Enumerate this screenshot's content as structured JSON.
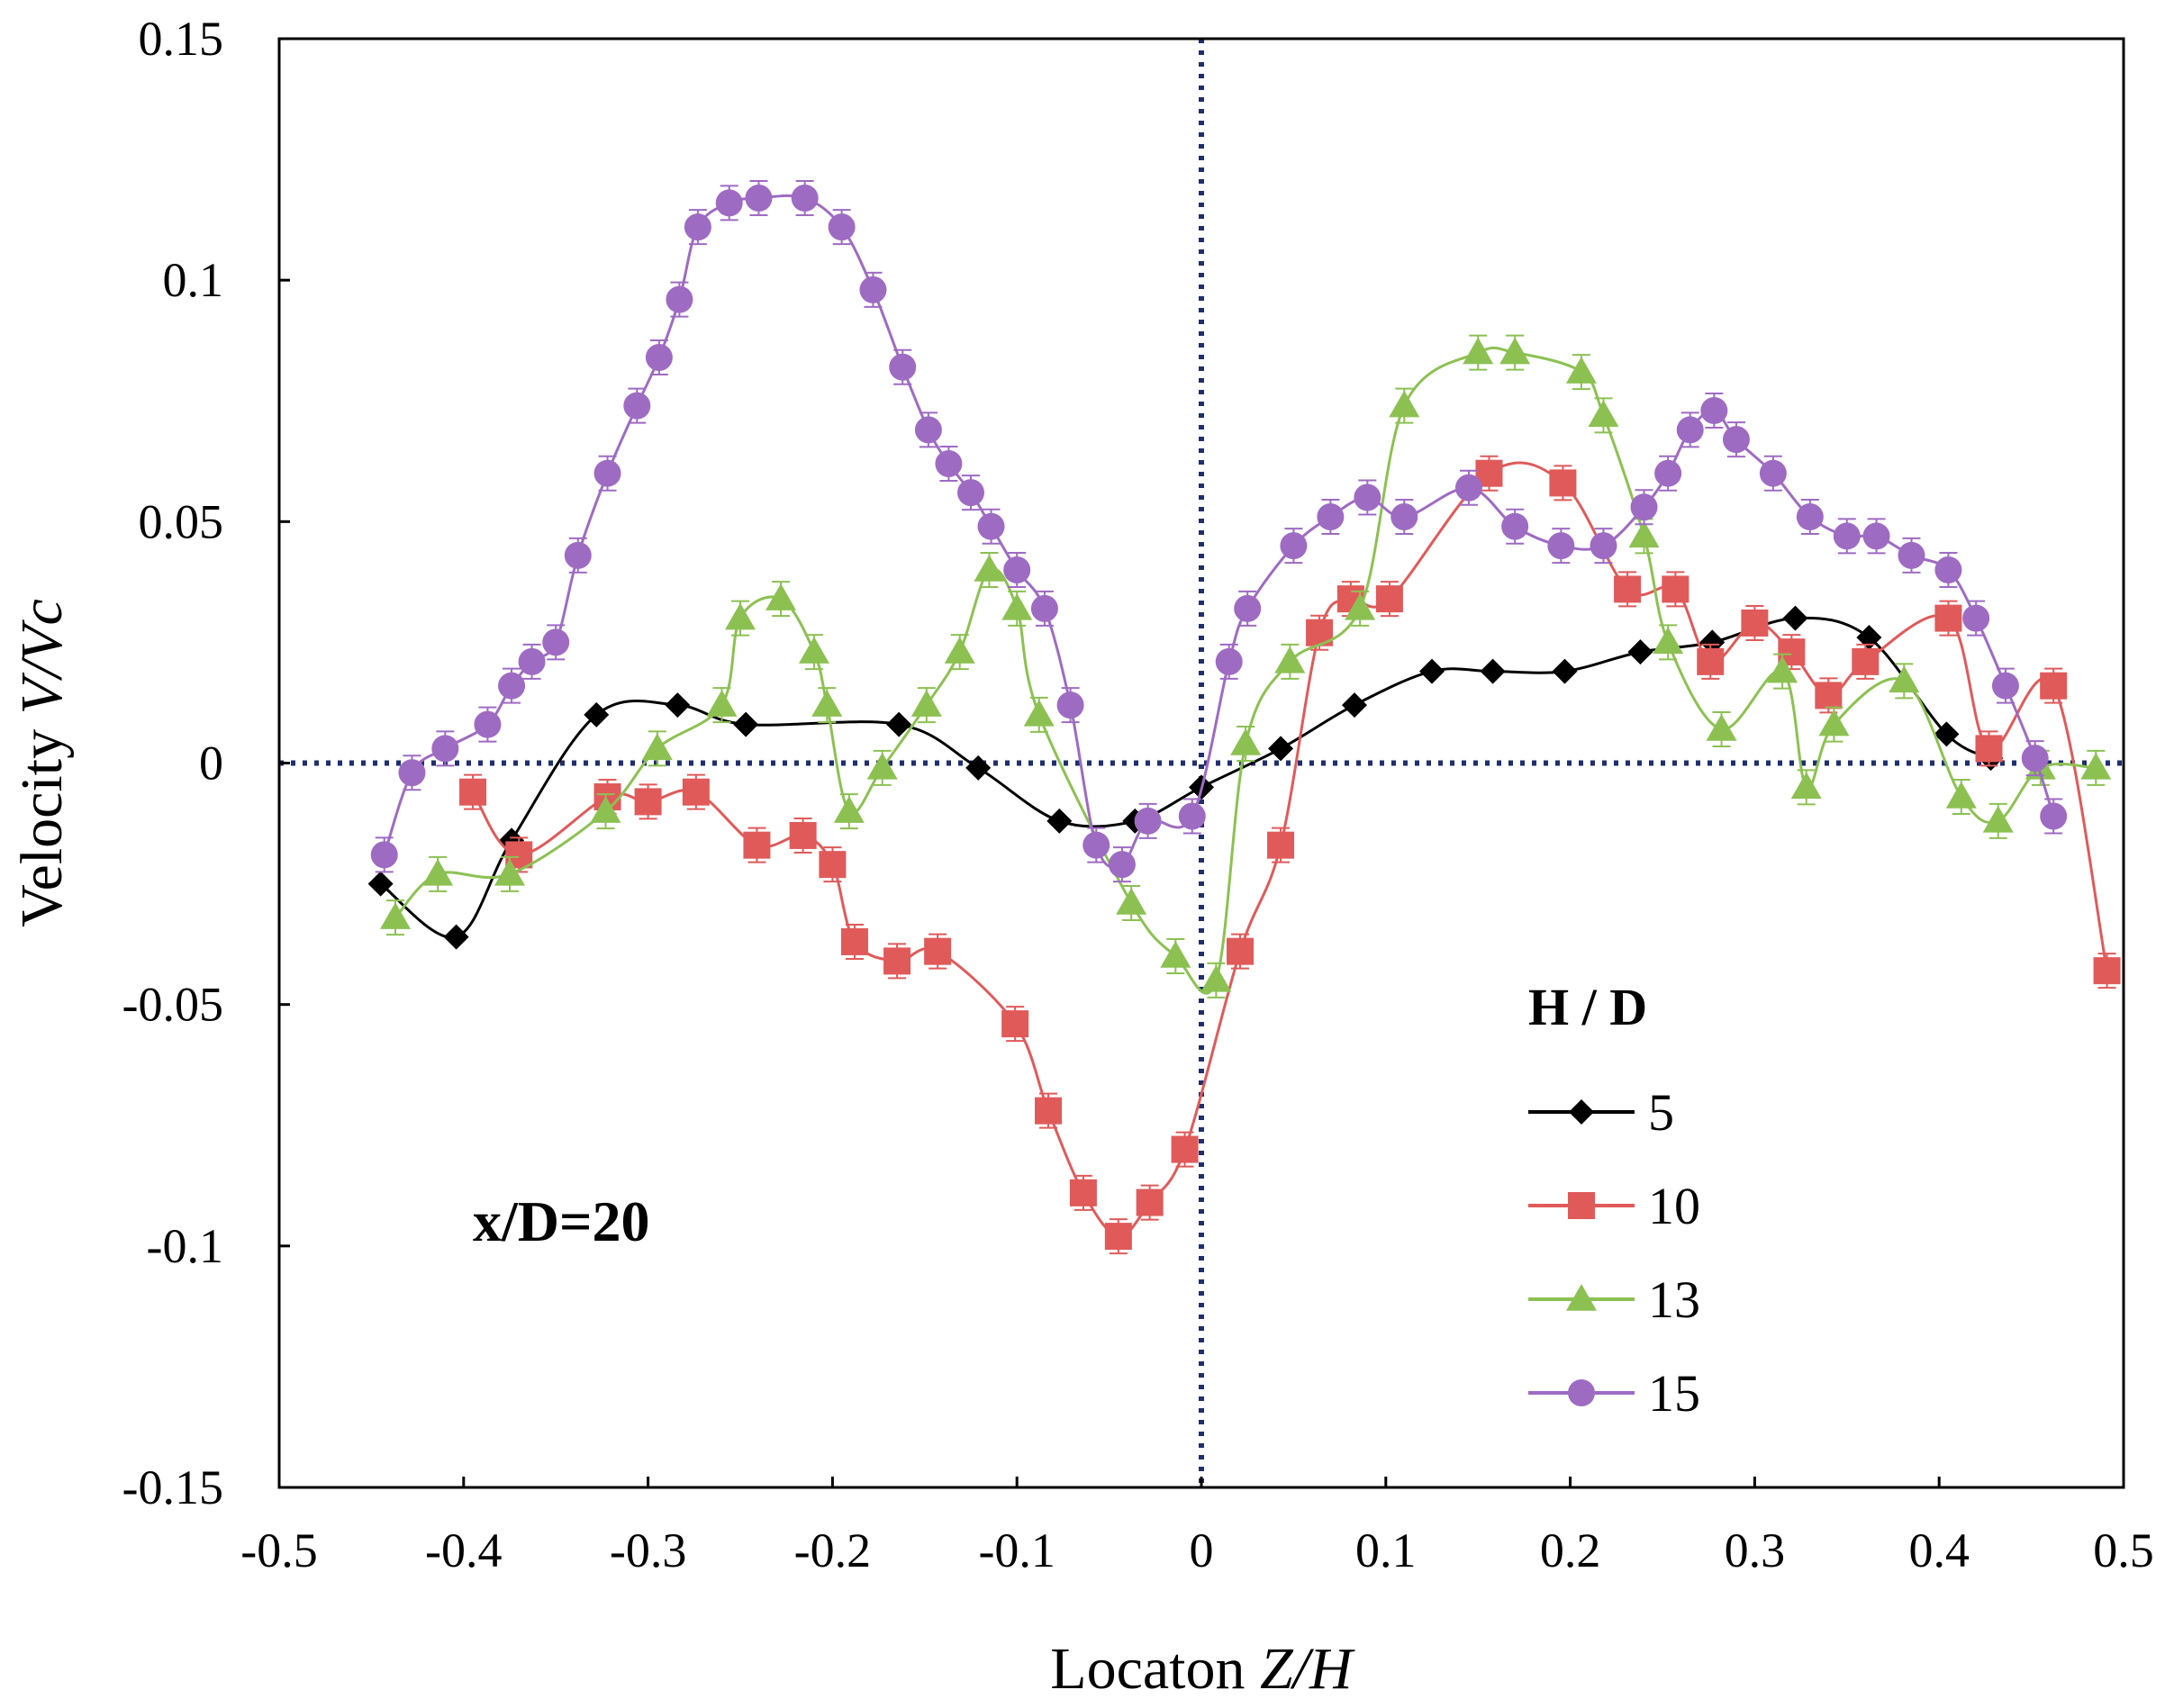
{
  "chart_data": {
    "type": "line",
    "xlabel": {
      "prefix": "Locaton ",
      "italic": "Z/H"
    },
    "ylabel": {
      "prefix": "Velocity ",
      "italic": "V/Vc"
    },
    "xlim": [
      -0.5,
      0.5
    ],
    "ylim": [
      -0.15,
      0.15
    ],
    "xticks": [
      -0.5,
      -0.4,
      -0.3,
      -0.2,
      -0.1,
      0,
      0.1,
      0.2,
      0.3,
      0.4,
      0.5
    ],
    "xtick_labels": [
      "-0.5",
      "-0.4",
      "-0.3",
      "-0.2",
      "-0.1",
      "0",
      "0.1",
      "0.2",
      "0.3",
      "0.4",
      "0.5"
    ],
    "yticks": [
      0.15,
      0.1,
      0.05,
      0,
      -0.05,
      -0.1,
      -0.15
    ],
    "ytick_labels": [
      "0.15",
      "0.1",
      "0.05",
      "0",
      "-0.05",
      "-0.1",
      "-0.15"
    ],
    "annotation": "x/D=20",
    "legend": {
      "title": "H / D",
      "position": "lower-right"
    },
    "reference_lines": [
      {
        "orientation": "vertical",
        "value": 0,
        "color": "#1f2e6e",
        "style": "dotted"
      },
      {
        "orientation": "horizontal",
        "value": 0,
        "color": "#1f2e6e",
        "style": "dotted"
      }
    ],
    "series": [
      {
        "name": "5",
        "color": "#000000",
        "marker": "diamond",
        "error_bars": false,
        "x": [
          -0.445,
          -0.404,
          -0.374,
          -0.328,
          -0.284,
          -0.247,
          -0.164,
          -0.121,
          -0.077,
          -0.036,
          0.0,
          0.043,
          0.083,
          0.125,
          0.158,
          0.197,
          0.238,
          0.277,
          0.322,
          0.362,
          0.404,
          0.428
        ],
        "y": [
          -0.025,
          -0.036,
          -0.016,
          0.01,
          0.012,
          0.008,
          0.008,
          -0.001,
          -0.012,
          -0.012,
          -0.005,
          0.003,
          0.012,
          0.019,
          0.019,
          0.019,
          0.023,
          0.025,
          0.03,
          0.026,
          0.006,
          0.001
        ]
      },
      {
        "name": "10",
        "color": "#e05a5a",
        "marker": "square",
        "error_bars": true,
        "x": [
          -0.395,
          -0.37,
          -0.322,
          -0.3,
          -0.274,
          -0.241,
          -0.216,
          -0.2,
          -0.188,
          -0.165,
          -0.143,
          -0.101,
          -0.083,
          -0.064,
          -0.045,
          -0.028,
          -0.009,
          0.021,
          0.043,
          0.064,
          0.081,
          0.102,
          0.156,
          0.196,
          0.231,
          0.257,
          0.276,
          0.3,
          0.32,
          0.34,
          0.36,
          0.405,
          0.427,
          0.462,
          0.491
        ],
        "y": [
          -0.006,
          -0.019,
          -0.007,
          -0.008,
          -0.006,
          -0.017,
          -0.015,
          -0.021,
          -0.037,
          -0.041,
          -0.039,
          -0.054,
          -0.072,
          -0.089,
          -0.098,
          -0.091,
          -0.08,
          -0.039,
          -0.017,
          0.027,
          0.034,
          0.034,
          0.06,
          0.058,
          0.036,
          0.036,
          0.021,
          0.029,
          0.023,
          0.014,
          0.021,
          0.03,
          0.003,
          0.016,
          -0.043
        ]
      },
      {
        "name": "13",
        "color": "#8cc152",
        "marker": "triangle",
        "error_bars": true,
        "x": [
          -0.437,
          -0.414,
          -0.375,
          -0.323,
          -0.295,
          -0.26,
          -0.25,
          -0.228,
          -0.21,
          -0.203,
          -0.191,
          -0.173,
          -0.149,
          -0.131,
          -0.115,
          -0.1,
          -0.088,
          -0.038,
          -0.014,
          0.008,
          0.024,
          0.048,
          0.086,
          0.11,
          0.15,
          0.17,
          0.206,
          0.218,
          0.24,
          0.253,
          0.282,
          0.315,
          0.328,
          0.343,
          0.381,
          0.412,
          0.432,
          0.455,
          0.485
        ],
        "y": [
          -0.032,
          -0.023,
          -0.023,
          -0.01,
          0.003,
          0.012,
          0.03,
          0.034,
          0.023,
          0.012,
          -0.01,
          -0.001,
          0.012,
          0.023,
          0.04,
          0.032,
          0.01,
          -0.029,
          -0.04,
          -0.045,
          0.004,
          0.021,
          0.032,
          0.074,
          0.085,
          0.085,
          0.081,
          0.072,
          0.047,
          0.025,
          0.007,
          0.019,
          -0.005,
          0.008,
          0.017,
          -0.007,
          -0.012,
          -0.001,
          -0.001
        ]
      },
      {
        "name": "15",
        "color": "#9e6bc3",
        "marker": "circle",
        "error_bars": true,
        "x": [
          -0.443,
          -0.428,
          -0.41,
          -0.387,
          -0.374,
          -0.363,
          -0.35,
          -0.338,
          -0.322,
          -0.306,
          -0.294,
          -0.283,
          -0.273,
          -0.256,
          -0.24,
          -0.215,
          -0.195,
          -0.178,
          -0.162,
          -0.148,
          -0.137,
          -0.125,
          -0.114,
          -0.1,
          -0.085,
          -0.071,
          -0.057,
          -0.043,
          -0.029,
          -0.005,
          0.015,
          0.025,
          0.05,
          0.07,
          0.09,
          0.11,
          0.145,
          0.17,
          0.195,
          0.218,
          0.24,
          0.253,
          0.265,
          0.278,
          0.29,
          0.31,
          0.33,
          0.35,
          0.366,
          0.385,
          0.405,
          0.42,
          0.436,
          0.452,
          0.462
        ],
        "y": [
          -0.019,
          -0.002,
          0.003,
          0.008,
          0.016,
          0.021,
          0.025,
          0.043,
          0.06,
          0.074,
          0.084,
          0.096,
          0.111,
          0.116,
          0.117,
          0.117,
          0.111,
          0.098,
          0.082,
          0.069,
          0.062,
          0.056,
          0.049,
          0.04,
          0.032,
          0.012,
          -0.017,
          -0.021,
          -0.012,
          -0.011,
          0.021,
          0.032,
          0.045,
          0.051,
          0.055,
          0.051,
          0.057,
          0.049,
          0.045,
          0.045,
          0.053,
          0.06,
          0.069,
          0.073,
          0.067,
          0.06,
          0.051,
          0.047,
          0.047,
          0.043,
          0.04,
          0.03,
          0.016,
          0.001,
          -0.011
        ]
      }
    ]
  }
}
